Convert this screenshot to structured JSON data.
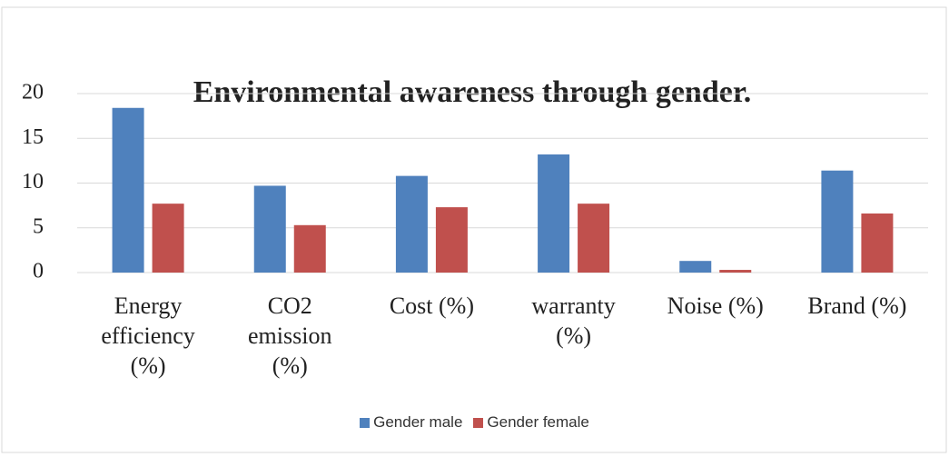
{
  "chart_data": {
    "type": "bar",
    "title": "Environmental awareness through gender.",
    "categories": [
      "Energy efficiency (%)",
      "CO2 emission (%)",
      "Cost (%)",
      "warranty (%)",
      "Noise (%)",
      "Brand (%)"
    ],
    "series": [
      {
        "name": "Gender male",
        "color": "#4f81bd",
        "values": [
          18.4,
          9.7,
          10.8,
          13.2,
          1.3,
          11.4
        ]
      },
      {
        "name": "Gender female",
        "color": "#c0504d",
        "values": [
          7.7,
          5.3,
          7.3,
          7.7,
          0.3,
          6.6
        ]
      }
    ],
    "ylim": [
      0,
      20
    ],
    "yticks": [
      0,
      5,
      10,
      15,
      20
    ],
    "grid": true,
    "legend": "bottom"
  }
}
